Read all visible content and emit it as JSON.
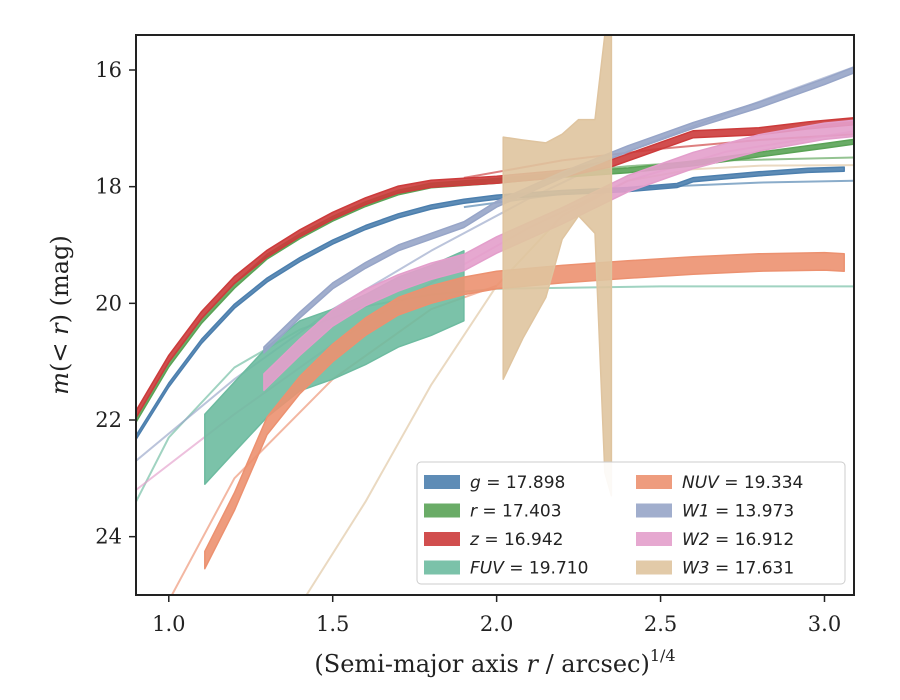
{
  "chart_data": {
    "type": "line",
    "title": "",
    "xlabel": "(Semi-major axis r / arcsec)^1/4",
    "xlabel_parts": {
      "pre": "(Semi-major axis ",
      "var": "r",
      "post": " / arcsec)",
      "sup": "1/4"
    },
    "ylabel": "m(< r) (mag)",
    "ylabel_parts": {
      "m": "m",
      "open": "(",
      "lt": "< ",
      "r": "r",
      "close": ")",
      "unit": " (mag)"
    },
    "xlim": [
      0.9,
      3.09
    ],
    "ylim": [
      25,
      15.4
    ],
    "y_inverted": true,
    "grid": false,
    "legend_position": "lower-right",
    "xticks": [
      1.0,
      1.5,
      2.0,
      2.5,
      3.0
    ],
    "xtick_labels": [
      "1.0",
      "1.5",
      "2.0",
      "2.5",
      "3.0"
    ],
    "yticks": [
      16,
      18,
      20,
      22,
      24
    ],
    "ytick_labels": [
      "16",
      "18",
      "20",
      "22",
      "24"
    ],
    "series": [
      {
        "name": "g = 17.898",
        "band": "g",
        "value": "17.898",
        "color": "#4c7fae",
        "data": [
          [
            0.9,
            22.3
          ],
          [
            1.0,
            21.4
          ],
          [
            1.1,
            20.65
          ],
          [
            1.2,
            20.05
          ],
          [
            1.3,
            19.6
          ],
          [
            1.4,
            19.25
          ],
          [
            1.5,
            18.95
          ],
          [
            1.6,
            18.7
          ],
          [
            1.7,
            18.5
          ],
          [
            1.8,
            18.35
          ],
          [
            1.9,
            18.25
          ],
          [
            2.0,
            18.18
          ],
          [
            2.2,
            18.1
          ],
          [
            2.4,
            18.05
          ],
          [
            2.55,
            17.98
          ],
          [
            2.6,
            17.88
          ],
          [
            2.8,
            17.78
          ],
          [
            2.95,
            17.72
          ],
          [
            3.06,
            17.7
          ]
        ],
        "band_width": 0.07,
        "model": [
          [
            1.9,
            18.35
          ],
          [
            2.2,
            18.12
          ],
          [
            2.5,
            18.0
          ],
          [
            2.8,
            17.93
          ],
          [
            3.09,
            17.9
          ]
        ]
      },
      {
        "name": "r = 17.403",
        "band": "r",
        "value": "17.403",
        "color": "#5aa356",
        "data": [
          [
            0.9,
            22.0
          ],
          [
            1.0,
            21.05
          ],
          [
            1.1,
            20.3
          ],
          [
            1.2,
            19.7
          ],
          [
            1.3,
            19.2
          ],
          [
            1.4,
            18.85
          ],
          [
            1.5,
            18.55
          ],
          [
            1.6,
            18.3
          ],
          [
            1.7,
            18.1
          ],
          [
            1.8,
            17.98
          ],
          [
            2.0,
            17.9
          ],
          [
            2.2,
            17.8
          ],
          [
            2.4,
            17.72
          ],
          [
            2.6,
            17.6
          ],
          [
            2.8,
            17.45
          ],
          [
            3.0,
            17.3
          ],
          [
            3.09,
            17.23
          ]
        ],
        "band_width": 0.08,
        "model": [
          [
            1.8,
            18.0
          ],
          [
            2.1,
            17.82
          ],
          [
            2.4,
            17.65
          ],
          [
            2.7,
            17.55
          ],
          [
            3.09,
            17.5
          ]
        ]
      },
      {
        "name": "z = 16.942",
        "band": "z",
        "value": "16.942",
        "color": "#cc3b3b",
        "data": [
          [
            0.9,
            21.9
          ],
          [
            1.0,
            20.95
          ],
          [
            1.1,
            20.2
          ],
          [
            1.2,
            19.6
          ],
          [
            1.3,
            19.15
          ],
          [
            1.4,
            18.8
          ],
          [
            1.5,
            18.5
          ],
          [
            1.6,
            18.25
          ],
          [
            1.7,
            18.05
          ],
          [
            1.8,
            17.95
          ],
          [
            2.0,
            17.88
          ],
          [
            2.2,
            17.78
          ],
          [
            2.35,
            17.6
          ],
          [
            2.5,
            17.3
          ],
          [
            2.6,
            17.1
          ],
          [
            2.8,
            17.05
          ],
          [
            2.95,
            16.95
          ],
          [
            3.09,
            16.88
          ]
        ],
        "band_width": 0.12,
        "model": [
          [
            1.9,
            17.85
          ],
          [
            2.2,
            17.55
          ],
          [
            2.5,
            17.35
          ],
          [
            2.8,
            17.2
          ],
          [
            3.09,
            17.1
          ]
        ]
      },
      {
        "name": "FUV = 19.710",
        "band": "FUV",
        "value": "19.710",
        "color": "#6dbba0",
        "data": [
          [
            1.11,
            22.5
          ],
          [
            1.2,
            21.95
          ],
          [
            1.3,
            21.35
          ],
          [
            1.4,
            20.9
          ],
          [
            1.5,
            20.7
          ],
          [
            1.6,
            20.45
          ],
          [
            1.7,
            20.15
          ],
          [
            1.8,
            19.95
          ],
          [
            1.9,
            19.7
          ]
        ],
        "band_width": 1.2,
        "model": [
          [
            0.9,
            23.4
          ],
          [
            1.0,
            22.3
          ],
          [
            1.2,
            21.1
          ],
          [
            1.4,
            20.45
          ],
          [
            1.6,
            20.05
          ],
          [
            1.8,
            19.85
          ],
          [
            2.0,
            19.75
          ],
          [
            2.5,
            19.71
          ],
          [
            3.09,
            19.71
          ]
        ]
      },
      {
        "name": "NUV = 19.334",
        "band": "NUV",
        "value": "19.334",
        "color": "#ec9170",
        "data": [
          [
            1.11,
            24.4
          ],
          [
            1.2,
            23.4
          ],
          [
            1.3,
            22.1
          ],
          [
            1.4,
            21.4
          ],
          [
            1.5,
            20.85
          ],
          [
            1.6,
            20.4
          ],
          [
            1.7,
            20.05
          ],
          [
            1.8,
            19.85
          ],
          [
            1.9,
            19.7
          ],
          [
            2.0,
            19.6
          ],
          [
            2.2,
            19.5
          ],
          [
            2.4,
            19.42
          ],
          [
            2.6,
            19.35
          ],
          [
            2.8,
            19.3
          ],
          [
            3.0,
            19.28
          ],
          [
            3.06,
            19.3
          ]
        ],
        "band_width": 0.3,
        "model": [
          [
            0.9,
            25.8
          ],
          [
            1.0,
            25.1
          ],
          [
            1.2,
            23.0
          ],
          [
            1.5,
            21.3
          ],
          [
            1.8,
            20.1
          ],
          [
            2.0,
            19.7
          ]
        ]
      },
      {
        "name": "W1 = 13.973",
        "band": "W1",
        "value": "13.973",
        "color": "#97a5c8",
        "data": [
          [
            1.29,
            20.8
          ],
          [
            1.4,
            20.2
          ],
          [
            1.5,
            19.7
          ],
          [
            1.6,
            19.35
          ],
          [
            1.7,
            19.05
          ],
          [
            1.8,
            18.85
          ],
          [
            1.9,
            18.65
          ],
          [
            2.0,
            18.3
          ],
          [
            2.2,
            17.8
          ],
          [
            2.4,
            17.35
          ],
          [
            2.6,
            16.95
          ],
          [
            2.8,
            16.6
          ],
          [
            3.0,
            16.2
          ],
          [
            3.09,
            16.0
          ]
        ],
        "band_width": 0.1,
        "model": [
          [
            0.9,
            22.7
          ],
          [
            1.2,
            21.3
          ],
          [
            1.5,
            20.1
          ],
          [
            1.8,
            19.1
          ],
          [
            2.1,
            18.2
          ],
          [
            2.4,
            17.4
          ],
          [
            2.7,
            16.75
          ],
          [
            3.09,
            15.95
          ]
        ]
      },
      {
        "name": "W2 = 16.912",
        "band": "W2",
        "value": "16.912",
        "color": "#e39ecb",
        "data": [
          [
            1.29,
            21.35
          ],
          [
            1.4,
            20.75
          ],
          [
            1.5,
            20.25
          ],
          [
            1.6,
            19.9
          ],
          [
            1.7,
            19.65
          ],
          [
            1.8,
            19.45
          ],
          [
            1.9,
            19.3
          ],
          [
            2.0,
            19.0
          ],
          [
            2.2,
            18.5
          ],
          [
            2.4,
            17.95
          ],
          [
            2.6,
            17.55
          ],
          [
            2.8,
            17.25
          ],
          [
            3.0,
            17.05
          ],
          [
            3.09,
            17.0
          ]
        ],
        "band_width": 0.28,
        "model": [
          [
            0.9,
            23.2
          ],
          [
            1.2,
            21.9
          ],
          [
            1.5,
            20.7
          ],
          [
            1.8,
            19.65
          ],
          [
            2.1,
            18.7
          ],
          [
            2.4,
            17.9
          ],
          [
            2.7,
            17.4
          ],
          [
            3.09,
            17.05
          ]
        ]
      },
      {
        "name": "W3 = 17.631",
        "band": "W3",
        "value": "17.631",
        "color": "#dfc49f",
        "band_shape": [
          [
            2.02,
            17.15,
            21.3
          ],
          [
            2.08,
            17.2,
            20.6
          ],
          [
            2.15,
            17.25,
            19.9
          ],
          [
            2.2,
            17.1,
            18.9
          ],
          [
            2.25,
            16.85,
            18.5
          ],
          [
            2.3,
            16.85,
            18.8
          ],
          [
            2.33,
            15.4,
            22.9
          ],
          [
            2.35,
            15.4,
            23.3
          ]
        ],
        "model": [
          [
            1.42,
            25.0
          ],
          [
            1.6,
            23.4
          ],
          [
            1.8,
            21.4
          ],
          [
            2.0,
            19.7
          ],
          [
            2.2,
            18.5
          ],
          [
            2.4,
            17.9
          ],
          [
            2.6,
            17.7
          ],
          [
            2.8,
            17.64
          ],
          [
            3.09,
            17.63
          ]
        ]
      }
    ]
  }
}
